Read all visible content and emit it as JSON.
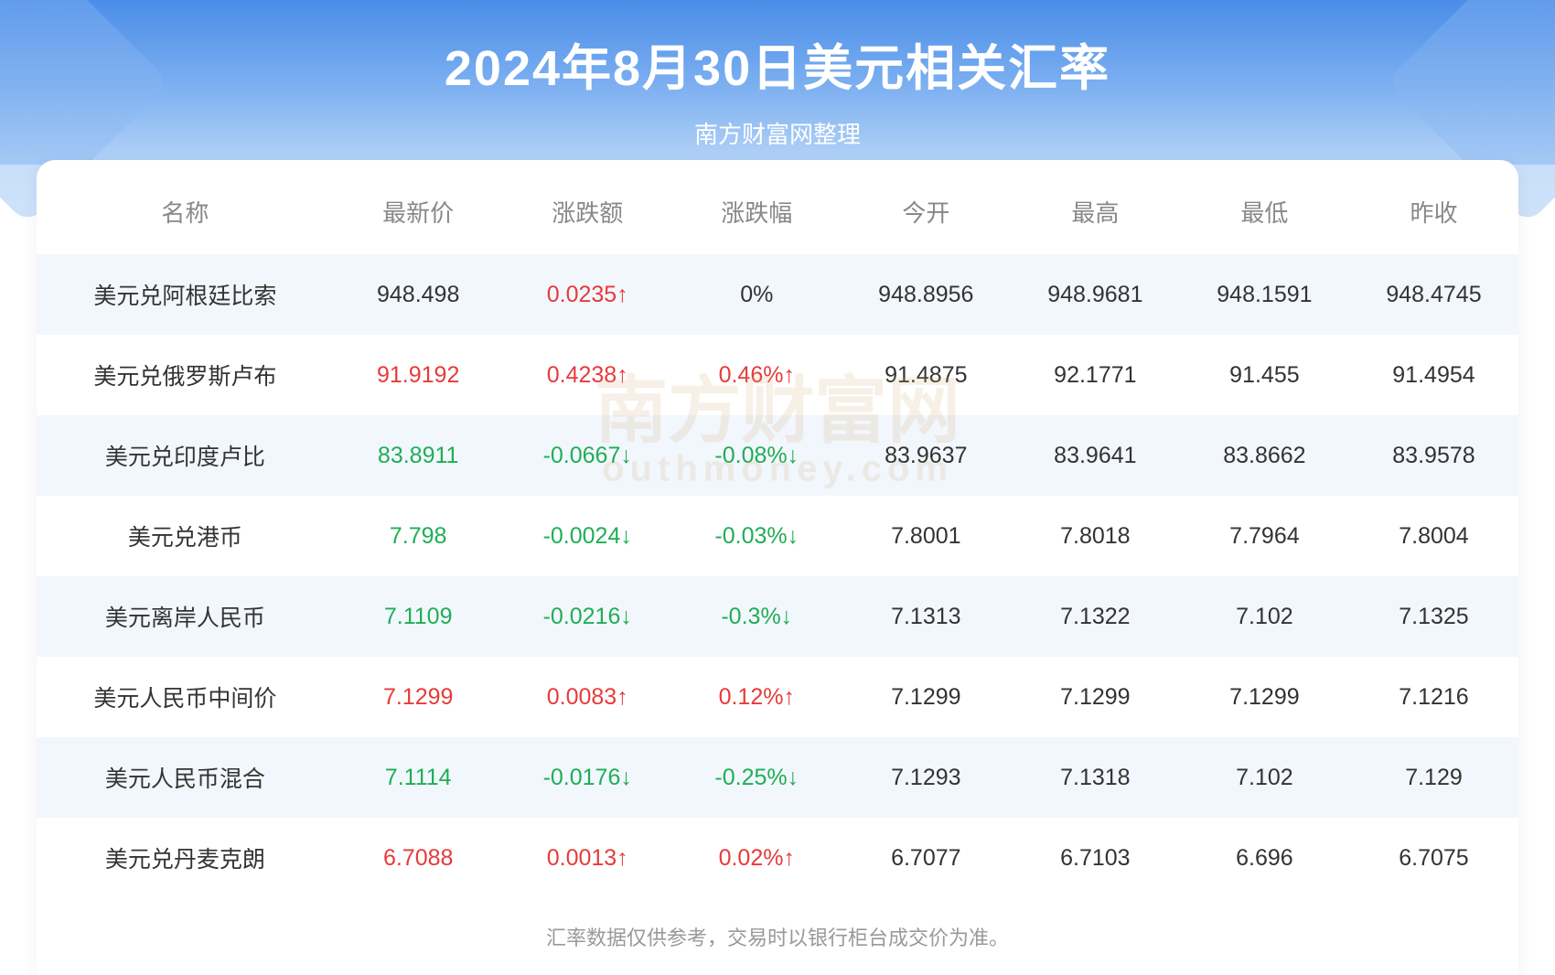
{
  "header": {
    "title": "2024年8月30日美元相关汇率",
    "subtitle": "南方财富网整理"
  },
  "styling": {
    "header_gradient_top": "#4a8de8",
    "header_gradient_bottom": "#b5d4f7",
    "card_bg": "#ffffff",
    "row_stripe_bg": "#f2f7fd",
    "text_color": "#333333",
    "header_text_color": "#888888",
    "up_color": "#e83a3a",
    "down_color": "#1fae54",
    "title_fontsize": 54,
    "subtitle_fontsize": 26,
    "header_fontsize": 26,
    "cell_fontsize": 25,
    "footer_fontsize": 22
  },
  "table": {
    "type": "table",
    "columns": [
      "名称",
      "最新价",
      "涨跌额",
      "涨跌幅",
      "今开",
      "最高",
      "最低",
      "昨收"
    ],
    "rows": [
      {
        "name": "美元兑阿根廷比索",
        "latest": {
          "value": "948.498",
          "trend": "neutral"
        },
        "change": {
          "value": "0.0235↑",
          "trend": "up"
        },
        "pct": {
          "value": "0%",
          "trend": "neutral"
        },
        "open": "948.8956",
        "high": "948.9681",
        "low": "948.1591",
        "prev": "948.4745"
      },
      {
        "name": "美元兑俄罗斯卢布",
        "latest": {
          "value": "91.9192",
          "trend": "up"
        },
        "change": {
          "value": "0.4238↑",
          "trend": "up"
        },
        "pct": {
          "value": "0.46%↑",
          "trend": "up"
        },
        "open": "91.4875",
        "high": "92.1771",
        "low": "91.455",
        "prev": "91.4954"
      },
      {
        "name": "美元兑印度卢比",
        "latest": {
          "value": "83.8911",
          "trend": "down"
        },
        "change": {
          "value": "-0.0667↓",
          "trend": "down"
        },
        "pct": {
          "value": "-0.08%↓",
          "trend": "down"
        },
        "open": "83.9637",
        "high": "83.9641",
        "low": "83.8662",
        "prev": "83.9578"
      },
      {
        "name": "美元兑港币",
        "latest": {
          "value": "7.798",
          "trend": "down"
        },
        "change": {
          "value": "-0.0024↓",
          "trend": "down"
        },
        "pct": {
          "value": "-0.03%↓",
          "trend": "down"
        },
        "open": "7.8001",
        "high": "7.8018",
        "low": "7.7964",
        "prev": "7.8004"
      },
      {
        "name": "美元离岸人民币",
        "latest": {
          "value": "7.1109",
          "trend": "down"
        },
        "change": {
          "value": "-0.0216↓",
          "trend": "down"
        },
        "pct": {
          "value": "-0.3%↓",
          "trend": "down"
        },
        "open": "7.1313",
        "high": "7.1322",
        "low": "7.102",
        "prev": "7.1325"
      },
      {
        "name": "美元人民币中间价",
        "latest": {
          "value": "7.1299",
          "trend": "up"
        },
        "change": {
          "value": "0.0083↑",
          "trend": "up"
        },
        "pct": {
          "value": "0.12%↑",
          "trend": "up"
        },
        "open": "7.1299",
        "high": "7.1299",
        "low": "7.1299",
        "prev": "7.1216"
      },
      {
        "name": "美元人民币混合",
        "latest": {
          "value": "7.1114",
          "trend": "down"
        },
        "change": {
          "value": "-0.0176↓",
          "trend": "down"
        },
        "pct": {
          "value": "-0.25%↓",
          "trend": "down"
        },
        "open": "7.1293",
        "high": "7.1318",
        "low": "7.102",
        "prev": "7.129"
      },
      {
        "name": "美元兑丹麦克朗",
        "latest": {
          "value": "6.7088",
          "trend": "up"
        },
        "change": {
          "value": "0.0013↑",
          "trend": "up"
        },
        "pct": {
          "value": "0.02%↑",
          "trend": "up"
        },
        "open": "6.7077",
        "high": "6.7103",
        "low": "6.696",
        "prev": "6.7075"
      }
    ]
  },
  "footer": {
    "note": "汇率数据仅供参考，交易时以银行柜台成交价为准。"
  },
  "watermark": {
    "main": "南方财富网",
    "sub": "outhmoney.com"
  }
}
